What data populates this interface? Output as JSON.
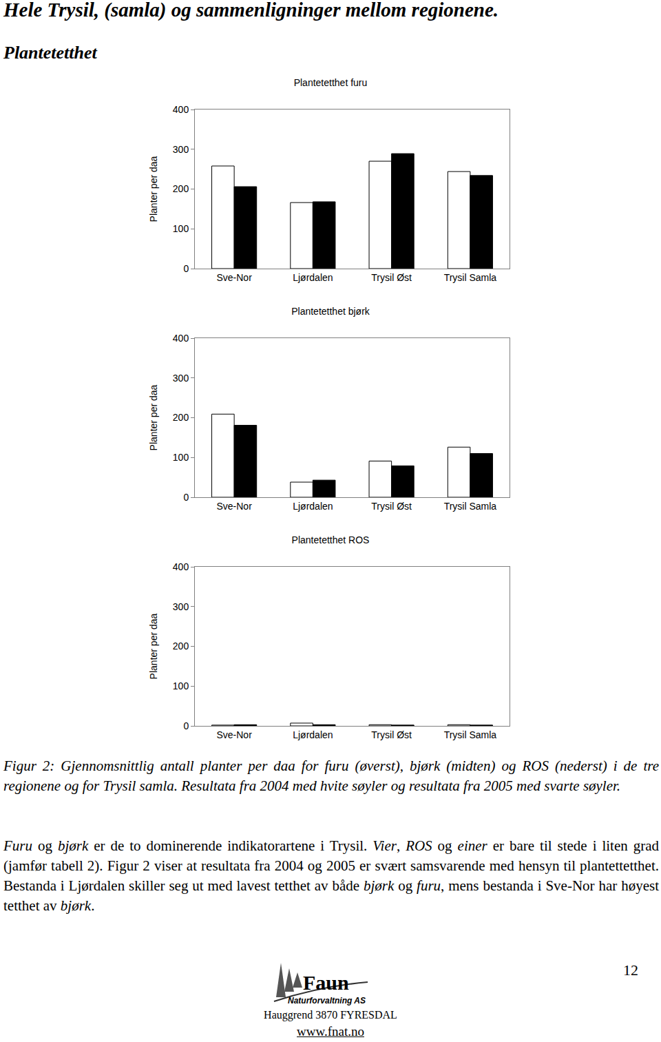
{
  "header": {
    "title": "Hele Trysil, (samla) og sammenligninger mellom regionene.",
    "subtitle": "Plantetetthet"
  },
  "chart_data": [
    {
      "type": "bar",
      "title": "Plantetetthet furu",
      "y_label": "Planter per daa",
      "categories": [
        "Sve-Nor",
        "Ljørdalen",
        "Trysil Øst",
        "Trysil Samla"
      ],
      "series": [
        {
          "color": "#ffffff",
          "values": [
            258,
            166,
            270,
            244
          ]
        },
        {
          "color": "#000000",
          "values": [
            206,
            168,
            289,
            234
          ]
        }
      ],
      "ylim": [
        0,
        400
      ],
      "yticks": [
        0,
        100,
        200,
        300,
        400
      ],
      "grid": false
    },
    {
      "type": "bar",
      "title": "Plantetetthet bjørk",
      "y_label": "Planter per daa",
      "categories": [
        "Sve-Nor",
        "Ljørdalen",
        "Trysil Øst",
        "Trysil Samla"
      ],
      "series": [
        {
          "color": "#ffffff",
          "values": [
            209,
            38,
            91,
            126
          ]
        },
        {
          "color": "#000000",
          "values": [
            181,
            43,
            79,
            110
          ]
        }
      ],
      "ylim": [
        0,
        400
      ],
      "yticks": [
        0,
        100,
        200,
        300,
        400
      ],
      "grid": false
    },
    {
      "type": "bar",
      "title": "Plantetetthet ROS",
      "y_label": "Planter per daa",
      "categories": [
        "Sve-Nor",
        "Ljørdalen",
        "Trysil Øst",
        "Trysil Samla"
      ],
      "series": [
        {
          "color": "#ffffff",
          "values": [
            2,
            7,
            3,
            3
          ]
        },
        {
          "color": "#000000",
          "values": [
            3,
            3,
            2,
            2
          ]
        }
      ],
      "ylim": [
        0,
        400
      ],
      "yticks": [
        0,
        100,
        200,
        300,
        400
      ],
      "grid": false
    }
  ],
  "caption": "Figur 2: Gjennomsnittlig antall planter per daa for furu (øverst), bjørk (midten) og ROS (nederst) i de tre regionene og for Trysil samla. Resultata fra 2004 med hvite søyler og resultata fra 2005 med svarte søyler.",
  "paragraph": [
    {
      "text": "Furu",
      "italic": true
    },
    {
      "text": " og ",
      "italic": false
    },
    {
      "text": "bjørk",
      "italic": true
    },
    {
      "text": " er de to dominerende indikatorartene i Trysil. ",
      "italic": false
    },
    {
      "text": "Vier",
      "italic": true
    },
    {
      "text": ", ",
      "italic": false
    },
    {
      "text": "ROS",
      "italic": true
    },
    {
      "text": " og ",
      "italic": false
    },
    {
      "text": "einer",
      "italic": true
    },
    {
      "text": " er bare til stede i liten grad (jamfør tabell 2). Figur 2 viser at resultata fra 2004 og 2005 er svært samsvarende med hensyn til plantettetthet. Bestanda i Ljørdalen skiller seg ut med lavest tetthet av både ",
      "italic": false
    },
    {
      "text": "bjørk",
      "italic": true
    },
    {
      "text": " og ",
      "italic": false
    },
    {
      "text": "furu",
      "italic": true
    },
    {
      "text": ", mens bestanda i Sve-Nor har høyest tetthet av ",
      "italic": false
    },
    {
      "text": "bjørk",
      "italic": true
    },
    {
      "text": ".",
      "italic": false
    }
  ],
  "footer": {
    "page": "12",
    "logo": [
      "Faun",
      "Naturforvaltning AS"
    ],
    "address": "Hauggrend 3870 FYRESDAL",
    "url": "www.fnat.no"
  }
}
